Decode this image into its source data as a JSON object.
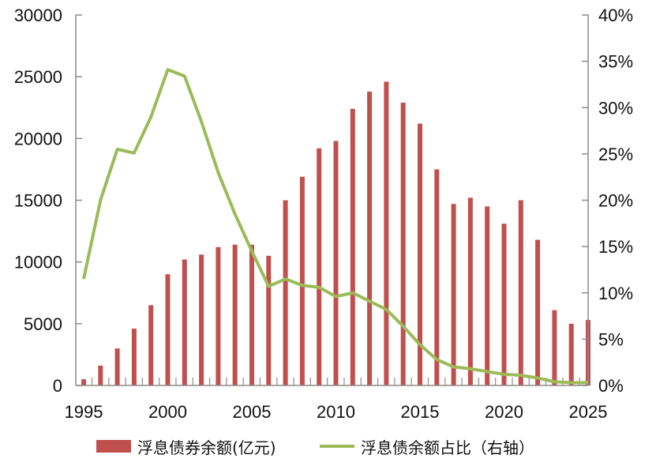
{
  "chart_data": {
    "type": "bar",
    "colors": {
      "bar": "#c0504d",
      "line": "#9bbb59",
      "axis": "#8c8c8c"
    },
    "x": [
      1995,
      1996,
      1997,
      1998,
      1999,
      2000,
      2001,
      2002,
      2003,
      2004,
      2005,
      2006,
      2007,
      2008,
      2009,
      2010,
      2011,
      2012,
      2013,
      2014,
      2015,
      2016,
      2017,
      2018,
      2019,
      2020,
      2021,
      2022,
      2023,
      2024,
      2025
    ],
    "xticks": [
      "1995",
      "2000",
      "2005",
      "2010",
      "2015",
      "2020",
      "2025"
    ],
    "xlim": [
      1995,
      2025
    ],
    "y_left": {
      "lim": [
        0,
        30000
      ],
      "ticks": [
        "0",
        "5000",
        "10000",
        "15000",
        "20000",
        "25000",
        "30000"
      ]
    },
    "y_right": {
      "lim": [
        0,
        40
      ],
      "ticks": [
        "0%",
        "5%",
        "10%",
        "15%",
        "20%",
        "25%",
        "30%",
        "35%",
        "40%"
      ]
    },
    "series": [
      {
        "name": "浮息债券余额(亿元)",
        "type": "bar",
        "axis": "left",
        "values": [
          500,
          1600,
          3000,
          4600,
          6500,
          9000,
          10200,
          10600,
          11200,
          11400,
          11400,
          10500,
          15000,
          16900,
          19200,
          19800,
          22400,
          23800,
          24600,
          22900,
          21200,
          17500,
          14700,
          15200,
          14500,
          13100,
          15000,
          11800,
          6100,
          5000,
          5300
        ]
      },
      {
        "name": "浮息债余额占比（右轴）",
        "type": "line",
        "axis": "right",
        "values": [
          11.5,
          20.0,
          25.5,
          25.1,
          29.0,
          34.1,
          33.4,
          28.5,
          23.0,
          18.5,
          14.5,
          10.7,
          11.5,
          10.8,
          10.6,
          9.6,
          10.0,
          9.1,
          8.2,
          6.4,
          4.4,
          2.8,
          2.0,
          1.8,
          1.5,
          1.2,
          1.1,
          0.8,
          0.4,
          0.3,
          0.3
        ]
      }
    ]
  }
}
